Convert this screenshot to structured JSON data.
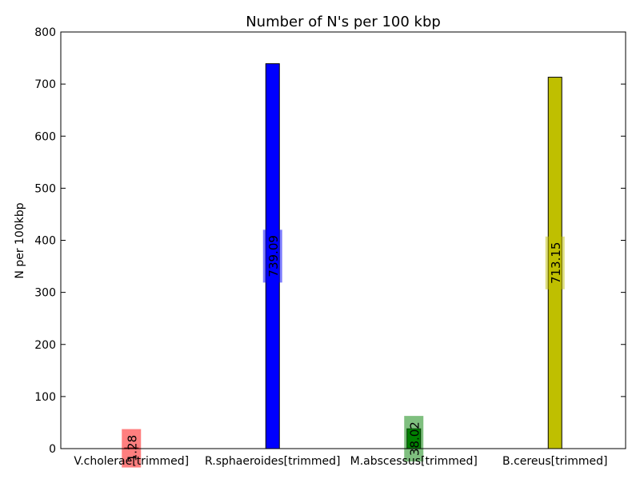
{
  "chart_data": {
    "type": "bar",
    "title": "Number of N's per 100 kbp",
    "xlabel": "",
    "ylabel": "N per 100kbp",
    "ylim": [
      0,
      800
    ],
    "yticks": [
      0,
      100,
      200,
      300,
      400,
      500,
      600,
      700,
      800
    ],
    "grid": false,
    "categories": [
      "V.cholerae[trimmed]",
      "R.sphaeroides[trimmed]",
      "M.abscessus[trimmed]",
      "B.cereus[trimmed]"
    ],
    "values": [
      1.28,
      739.09,
      38.02,
      713.15
    ],
    "data_labels": [
      "1.28",
      "739.09",
      "38.02",
      "713.15"
    ],
    "colors": [
      "#ff0000",
      "#0000ff",
      "#008000",
      "#bfbf00"
    ]
  }
}
